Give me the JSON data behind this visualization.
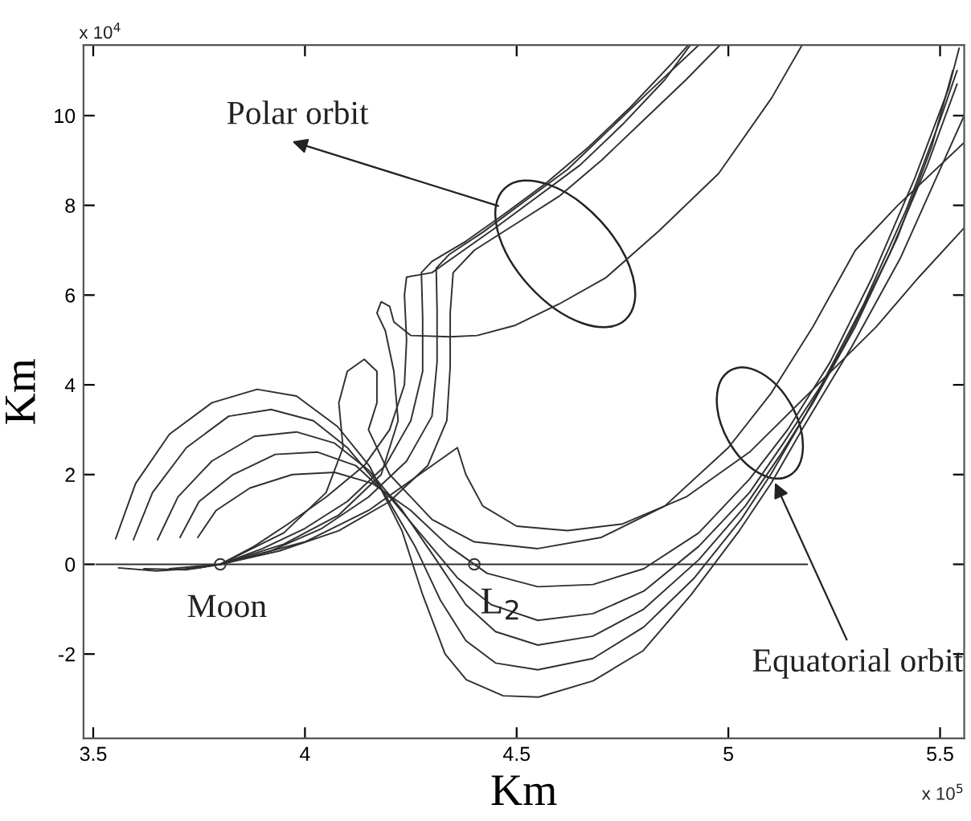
{
  "chart_data": {
    "type": "line",
    "xlabel": "Km",
    "ylabel": "Km",
    "xlim": [
      3.477,
      5.557
    ],
    "ylim": [
      -3.88,
      11.57
    ],
    "xticks": [
      3.5,
      4,
      4.5,
      5,
      5.5
    ],
    "yticks": [
      -2,
      0,
      2,
      4,
      6,
      8,
      10
    ],
    "annotations": [
      "x 10$^{4}$",
      "x 10$^{5}$",
      "Polar orbit",
      {
        "text": "Moon",
        "x": 3.8,
        "y": 0
      },
      {
        "text": "L$_{2}$",
        "x": 4.4,
        "y": 0
      },
      {
        "text": "Equatorial orbit",
        "x": 5.11,
        "y": 1.82
      }
    ],
    "series": [
      {
        "color": "#303030",
        "x": [
          3.553,
          3.6,
          3.68,
          3.78,
          3.887,
          3.98,
          4.077,
          4.153,
          4.229,
          4.278,
          4.331,
          4.381,
          4.468,
          4.552,
          4.68,
          4.798,
          4.912,
          5.026,
          5.102,
          5.178,
          5.292,
          5.406,
          5.5,
          5.557
        ],
        "values": [
          0.57,
          1.8,
          2.9,
          3.6,
          3.9,
          3.75,
          3.07,
          2.18,
          0.75,
          -0.68,
          -2.0,
          -2.57,
          -2.93,
          -2.96,
          -2.6,
          -1.93,
          -0.68,
          0.75,
          1.82,
          3.07,
          4.86,
          6.82,
          8.8,
          10.0
        ]
      },
      {
        "color": "#303030",
        "x": [
          3.595,
          3.64,
          3.72,
          3.82,
          3.92,
          4.02,
          4.1,
          4.18,
          4.26,
          4.32,
          4.38,
          4.45,
          4.55,
          4.68,
          4.8,
          4.92,
          5.03,
          5.1,
          5.18,
          5.28,
          5.38,
          5.47,
          5.54
        ],
        "values": [
          0.55,
          1.6,
          2.6,
          3.3,
          3.45,
          3.2,
          2.6,
          1.7,
          0.4,
          -0.8,
          -1.7,
          -2.2,
          -2.35,
          -2.1,
          -1.4,
          -0.3,
          1.0,
          2.0,
          3.3,
          5.0,
          6.9,
          8.9,
          10.7
        ]
      },
      {
        "color": "#303030",
        "x": [
          3.652,
          3.7,
          3.78,
          3.88,
          3.98,
          4.07,
          4.15,
          4.23,
          4.31,
          4.38,
          4.45,
          4.55,
          4.68,
          4.8,
          4.93,
          5.04,
          5.12,
          5.2,
          5.3,
          5.4,
          5.48,
          5.53
        ],
        "values": [
          0.55,
          1.5,
          2.3,
          2.85,
          2.95,
          2.7,
          2.1,
          1.2,
          0.1,
          -0.9,
          -1.5,
          -1.8,
          -1.6,
          -1.0,
          0.1,
          1.3,
          2.4,
          3.6,
          5.3,
          7.3,
          9.3,
          11.0
        ]
      },
      {
        "color": "#303030",
        "x": [
          3.705,
          3.75,
          3.83,
          3.93,
          4.03,
          4.12,
          4.2,
          4.28,
          4.36,
          4.44,
          4.55,
          4.68,
          4.8,
          4.93,
          5.05,
          5.13,
          5.22,
          5.32,
          5.42,
          5.5,
          5.54
        ],
        "values": [
          0.6,
          1.4,
          2.0,
          2.45,
          2.5,
          2.2,
          1.5,
          0.6,
          -0.3,
          -0.9,
          -1.25,
          -1.1,
          -0.6,
          0.4,
          1.6,
          2.7,
          4.0,
          5.8,
          7.9,
          9.9,
          11.0
        ]
      },
      {
        "color": "#303030",
        "x": [
          3.747,
          3.79,
          3.87,
          3.97,
          4.07,
          4.16,
          4.25,
          4.34,
          4.43,
          4.55,
          4.68,
          4.8,
          4.93,
          5.05,
          5.14,
          5.24,
          5.34,
          5.44,
          5.52,
          5.545
        ],
        "values": [
          0.6,
          1.2,
          1.7,
          2.0,
          2.05,
          1.8,
          1.2,
          0.4,
          -0.2,
          -0.5,
          -0.45,
          -0.1,
          0.7,
          1.9,
          3.0,
          4.5,
          6.4,
          8.6,
          10.6,
          11.5
        ]
      },
      {
        "color": "#303030",
        "x": [
          3.56,
          3.65,
          3.75,
          3.8,
          3.88,
          3.96,
          4.05,
          4.14,
          4.2,
          4.235,
          4.24,
          4.235,
          4.24,
          4.3,
          4.36,
          4.45,
          4.55,
          4.65,
          4.75,
          4.85,
          4.91
        ],
        "values": [
          -0.08,
          -0.15,
          -0.08,
          0,
          0.4,
          0.9,
          1.5,
          2.2,
          3.0,
          4.0,
          5.0,
          6.0,
          6.4,
          6.5,
          6.9,
          7.5,
          8.2,
          8.9,
          9.8,
          10.8,
          11.57
        ]
      },
      {
        "color": "#303030",
        "x": [
          3.62,
          3.72,
          3.8,
          3.9,
          4.0,
          4.1,
          4.19,
          4.25,
          4.278,
          4.278,
          4.275,
          4.3,
          4.38,
          4.47,
          4.57,
          4.67,
          4.77,
          4.87,
          4.905
        ],
        "values": [
          -0.1,
          -0.12,
          0,
          0.35,
          0.8,
          1.4,
          2.2,
          3.2,
          4.3,
          5.5,
          6.5,
          6.75,
          7.2,
          7.8,
          8.5,
          9.3,
          10.2,
          11.2,
          11.57
        ]
      },
      {
        "color": "#303030",
        "x": [
          3.68,
          3.8,
          3.92,
          4.04,
          4.15,
          4.24,
          4.3,
          4.312,
          4.312,
          4.31,
          4.34,
          4.42,
          4.52,
          4.62,
          4.72,
          4.82,
          4.93
        ],
        "values": [
          -0.1,
          0,
          0.3,
          0.8,
          1.5,
          2.3,
          3.3,
          4.5,
          5.7,
          6.6,
          6.9,
          7.4,
          8.1,
          8.8,
          9.7,
          10.6,
          11.57
        ]
      },
      {
        "color": "#303030",
        "x": [
          3.72,
          3.8,
          3.94,
          4.08,
          4.2,
          4.29,
          4.335,
          4.343,
          4.343,
          4.35,
          4.4,
          4.5,
          4.6,
          4.7,
          4.8,
          4.9,
          4.98
        ],
        "values": [
          -0.1,
          0,
          0.3,
          0.75,
          1.4,
          2.2,
          3.2,
          4.4,
          5.6,
          6.5,
          7.0,
          7.6,
          8.2,
          9.0,
          9.9,
          10.8,
          11.57
        ]
      },
      {
        "color": "#303030",
        "x": [
          3.8,
          3.95,
          4.08,
          4.18,
          4.22,
          4.21,
          4.19,
          4.17,
          4.18,
          4.2,
          4.21,
          4.25,
          4.343,
          4.407,
          4.495,
          4.6,
          4.711,
          4.836,
          4.977,
          5.102,
          5.174
        ],
        "values": [
          0,
          0.45,
          1.1,
          2.0,
          3.2,
          4.3,
          5.2,
          5.6,
          5.85,
          5.75,
          5.4,
          5.1,
          5.07,
          5.1,
          5.32,
          5.8,
          6.39,
          7.43,
          8.71,
          10.39,
          11.57
        ]
      },
      {
        "color": "#303030",
        "x": [
          3.8,
          3.95,
          4.05,
          4.09,
          4.08,
          4.1,
          4.14,
          4.17,
          4.17,
          4.15,
          4.2,
          4.3,
          4.4,
          4.55,
          4.7,
          4.85,
          5.0,
          5.1,
          5.2,
          5.3,
          5.4,
          5.557
        ],
        "values": [
          0,
          0.7,
          1.6,
          2.6,
          3.6,
          4.3,
          4.57,
          4.3,
          3.6,
          3.0,
          2.0,
          1.0,
          0.5,
          0.35,
          0.6,
          1.3,
          2.6,
          3.8,
          5.3,
          7.0,
          8.0,
          9.4
        ]
      },
      {
        "color": "#303030",
        "x": [
          3.8,
          4.0,
          4.15,
          4.27,
          4.36,
          4.38,
          4.42,
          4.5,
          4.62,
          4.75,
          4.9,
          5.05,
          5.2,
          5.35,
          5.45,
          5.557
        ],
        "values": [
          0,
          0.5,
          1.2,
          2.0,
          2.6,
          2.0,
          1.3,
          0.85,
          0.75,
          0.9,
          1.5,
          2.5,
          3.9,
          5.3,
          6.4,
          7.5
        ]
      },
      {
        "color": "#303030",
        "x": [
          3.507,
          5.186
        ],
        "values": [
          0,
          0
        ]
      },
      {
        "type": "scatter",
        "marker": "circle",
        "color": "#303030",
        "x": [
          3.8,
          4.4
        ],
        "values": [
          0,
          0
        ]
      }
    ]
  }
}
